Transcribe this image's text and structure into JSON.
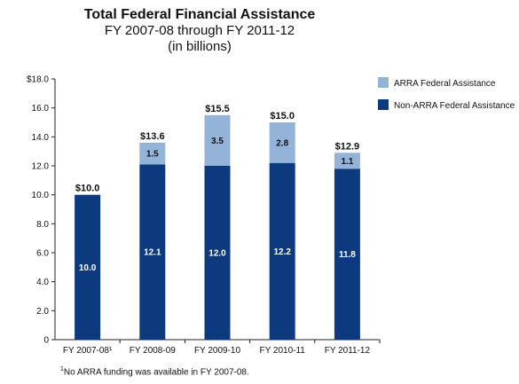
{
  "chart_data": {
    "type": "bar",
    "stacked": true,
    "title": "Total Federal Financial Assistance",
    "subtitle": "FY 2007-08 through FY 2011-12",
    "units_note": "(in billions)",
    "categories": [
      "FY 2007-08¹",
      "FY 2008-09",
      "FY 2009-10",
      "FY 2010-11",
      "FY 2011-12"
    ],
    "series": [
      {
        "name": "Non-ARRA Federal Assistance",
        "values": [
          10.0,
          12.1,
          12.0,
          12.2,
          11.8
        ],
        "labels": [
          "10.0",
          "12.1",
          "12.0",
          "12.2",
          "11.8"
        ],
        "color": "#0d3a7e"
      },
      {
        "name": "ARRA Federal Assistance",
        "values": [
          null,
          1.5,
          3.5,
          2.8,
          1.1
        ],
        "labels": [
          "",
          "1.5",
          "3.5",
          "2.8",
          "1.1"
        ],
        "color": "#94b3d9"
      }
    ],
    "totals": [
      "$10.0",
      "$13.6",
      "$15.5",
      "$15.0",
      "$12.9"
    ],
    "ylim": [
      0,
      18
    ],
    "yticks": [
      0,
      2,
      4,
      6,
      8,
      10,
      12,
      14,
      16,
      18
    ],
    "ytick_labels": [
      "0",
      "2.0",
      "4.0",
      "6.0",
      "8.0",
      "10.0",
      "12.0",
      "14.0",
      "16.0",
      "$18.0"
    ],
    "legend": {
      "position": "top-right",
      "order": [
        "ARRA Federal Assistance",
        "Non-ARRA Federal Assistance"
      ]
    },
    "grid": false,
    "footnote": "No ARRA funding was available in FY 2007-08.",
    "footnote_marker": "1"
  }
}
